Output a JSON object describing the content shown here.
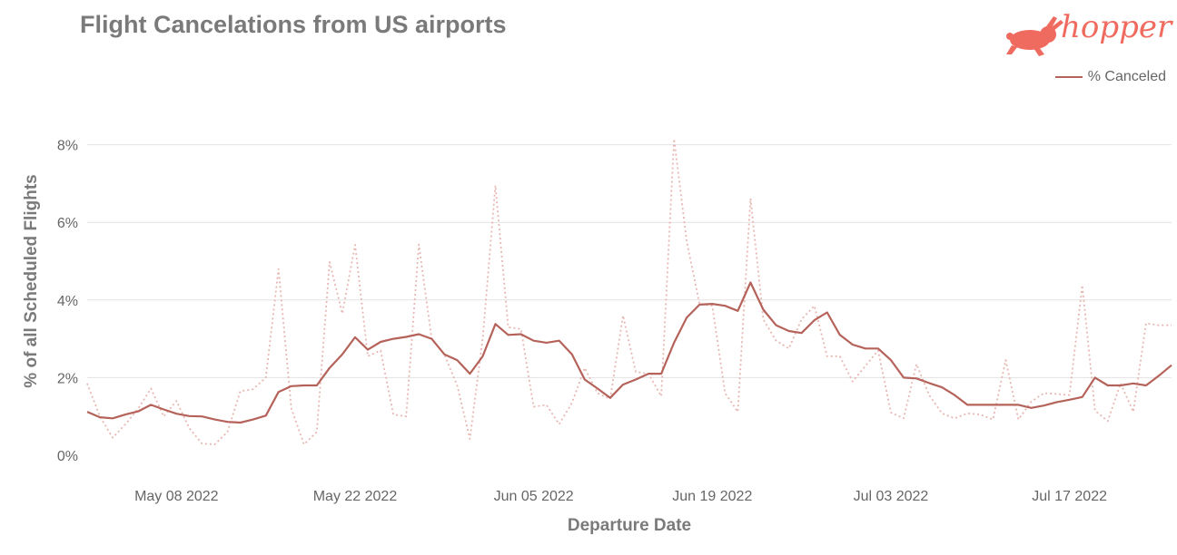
{
  "title": "Flight Cancelations from US airports",
  "brand": {
    "name": "hopper",
    "color": "#f06b5f",
    "logo_icon": "bunny-icon"
  },
  "legend": {
    "label": "% Canceled",
    "placement": "top-right"
  },
  "chart_data": {
    "type": "line",
    "xlabel": "Departure Date",
    "ylabel": "% of all Scheduled Flights",
    "x_tick_labels": [
      "May 08 2022",
      "May 22 2022",
      "Jun 05 2022",
      "Jun 19 2022",
      "Jul 03 2022",
      "Jul 17 2022"
    ],
    "y_ticks": [
      "0%",
      "2%",
      "4%",
      "6%",
      "8%"
    ],
    "ylim": [
      0,
      8.5
    ],
    "grid": "horizontal",
    "x_start_date": "2022-05-01",
    "series": [
      {
        "name": "% Canceled",
        "style": "solid",
        "color": "#b5635a",
        "values": [
          1.12,
          0.98,
          0.95,
          1.05,
          1.13,
          1.3,
          1.18,
          1.07,
          1.01,
          1.0,
          0.92,
          0.86,
          0.84,
          0.92,
          1.02,
          1.63,
          1.78,
          1.8,
          1.8,
          2.25,
          2.6,
          3.04,
          2.72,
          2.92,
          3.0,
          3.05,
          3.12,
          3.0,
          2.6,
          2.45,
          2.1,
          2.55,
          3.38,
          3.1,
          3.12,
          2.95,
          2.9,
          2.95,
          2.6,
          1.95,
          1.72,
          1.48,
          1.82,
          1.95,
          2.1,
          2.1,
          2.9,
          3.55,
          3.88,
          3.9,
          3.85,
          3.72,
          4.45,
          3.75,
          3.35,
          3.2,
          3.15,
          3.48,
          3.68,
          3.1,
          2.85,
          2.75,
          2.75,
          2.45,
          2.0,
          1.98,
          1.86,
          1.75,
          1.55,
          1.3,
          1.3,
          1.3,
          1.3,
          1.3,
          1.22,
          1.28,
          1.37,
          1.43,
          1.5,
          2.0,
          1.8,
          1.8,
          1.85,
          1.8,
          2.05,
          2.32
        ]
      },
      {
        "style": "dotted",
        "color": "#e7b7b2",
        "values": [
          1.85,
          1.0,
          0.45,
          0.8,
          1.2,
          1.72,
          1.0,
          1.4,
          0.7,
          0.3,
          0.28,
          0.6,
          1.65,
          1.7,
          2.0,
          4.8,
          1.2,
          0.28,
          0.6,
          4.98,
          3.65,
          5.42,
          2.55,
          2.7,
          1.05,
          1.0,
          5.43,
          3.0,
          2.6,
          1.8,
          0.42,
          3.0,
          6.95,
          3.3,
          3.25,
          1.25,
          1.3,
          0.8,
          1.35,
          2.25,
          1.6,
          1.45,
          3.6,
          2.15,
          2.1,
          1.52,
          8.15,
          5.5,
          3.9,
          3.85,
          1.6,
          1.12,
          6.62,
          3.5,
          2.95,
          2.75,
          3.5,
          3.85,
          2.55,
          2.55,
          1.9,
          2.3,
          2.7,
          1.1,
          0.95,
          2.35,
          1.55,
          1.08,
          0.95,
          1.08,
          1.05,
          0.92,
          2.45,
          0.92,
          1.38,
          1.6,
          1.58,
          1.55,
          4.38,
          1.15,
          0.88,
          1.85,
          1.12,
          3.4,
          3.35,
          3.35
        ]
      }
    ]
  }
}
